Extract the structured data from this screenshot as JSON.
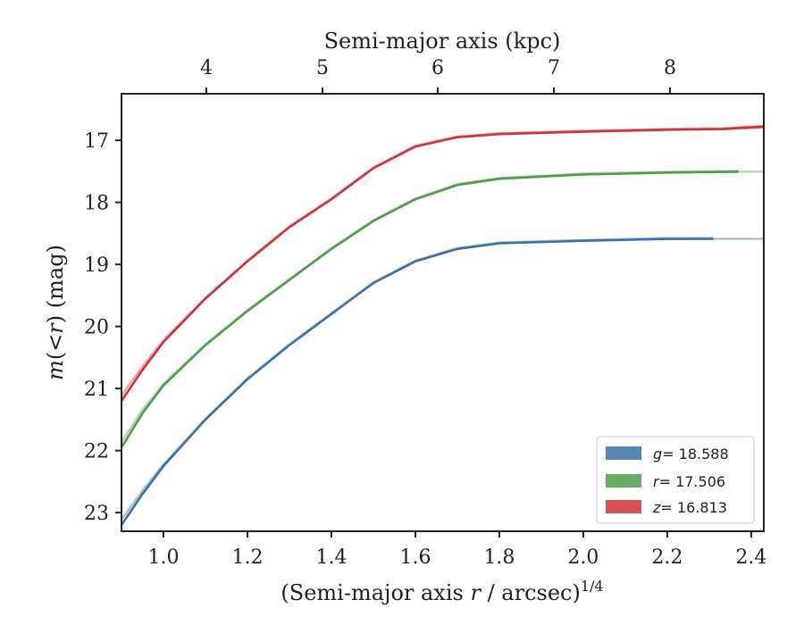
{
  "chart_data": {
    "type": "line",
    "title": "",
    "xlabel": "(Semi-major axis r / arcsec)^{1/4}",
    "xlabel_parts": {
      "pre": "(Semi-major axis ",
      "var": "r",
      "post": " / arcsec)",
      "sup": "1/4"
    },
    "x2label": "Semi-major axis (kpc)",
    "ylabel": "m(<r) (mag)",
    "ylabel_parts": {
      "var": "m",
      "mid": "(<",
      "var2": "r",
      "post": ") (mag)"
    },
    "xlim": [
      0.9,
      2.43
    ],
    "ylim": [
      23.3,
      16.25
    ],
    "y_inverted": true,
    "xticks": [
      1.0,
      1.2,
      1.4,
      1.6,
      1.8,
      2.0,
      2.2,
      2.4
    ],
    "xtick_labels": [
      "1.0",
      "1.2",
      "1.4",
      "1.6",
      "1.8",
      "2.0",
      "2.2",
      "2.4"
    ],
    "yticks": [
      17,
      18,
      19,
      20,
      21,
      22,
      23
    ],
    "ytick_labels": [
      "17",
      "18",
      "19",
      "20",
      "21",
      "22",
      "23"
    ],
    "x2ticks": [
      4,
      5,
      6,
      7,
      8
    ],
    "x2tick_labels": [
      "4",
      "5",
      "6",
      "7",
      "8"
    ],
    "legend_position": "lower-right",
    "grid": false,
    "series": [
      {
        "name": "g = 18.588",
        "legend_var": "g",
        "legend_value": "= 18.588",
        "color": "#3a73a8",
        "x": [
          0.9,
          0.95,
          1.0,
          1.1,
          1.2,
          1.3,
          1.4,
          1.5,
          1.6,
          1.7,
          1.8,
          2.0,
          2.2,
          2.31
        ],
        "values": [
          23.2,
          22.7,
          22.25,
          21.5,
          20.85,
          20.3,
          19.8,
          19.3,
          18.95,
          18.75,
          18.66,
          18.62,
          18.59,
          18.588
        ],
        "x_ext": [
          2.31,
          2.43
        ],
        "values_ext": [
          18.588,
          18.588
        ]
      },
      {
        "name": "r = 17.506",
        "legend_var": "r",
        "legend_value": "= 17.506",
        "color": "#4e9e48",
        "x": [
          0.9,
          0.95,
          1.0,
          1.1,
          1.2,
          1.3,
          1.4,
          1.5,
          1.6,
          1.7,
          1.8,
          2.0,
          2.2,
          2.37
        ],
        "values": [
          21.95,
          21.4,
          20.95,
          20.3,
          19.75,
          19.25,
          18.75,
          18.3,
          17.95,
          17.72,
          17.62,
          17.55,
          17.52,
          17.506
        ],
        "x_ext": [
          2.37,
          2.43
        ],
        "values_ext": [
          17.506,
          17.506
        ]
      },
      {
        "name": "z = 16.813",
        "legend_var": "z",
        "legend_value": "= 16.813",
        "color": "#d03436",
        "x": [
          0.9,
          0.95,
          1.0,
          1.1,
          1.2,
          1.3,
          1.4,
          1.5,
          1.6,
          1.7,
          1.8,
          2.0,
          2.2,
          2.33,
          2.43
        ],
        "values": [
          21.2,
          20.7,
          20.25,
          19.55,
          18.95,
          18.4,
          17.95,
          17.45,
          17.1,
          16.95,
          16.9,
          16.86,
          16.83,
          16.82,
          16.78
        ],
        "x_ext": [
          2.33,
          2.43
        ],
        "values_ext": [
          16.82,
          16.8
        ]
      }
    ]
  }
}
